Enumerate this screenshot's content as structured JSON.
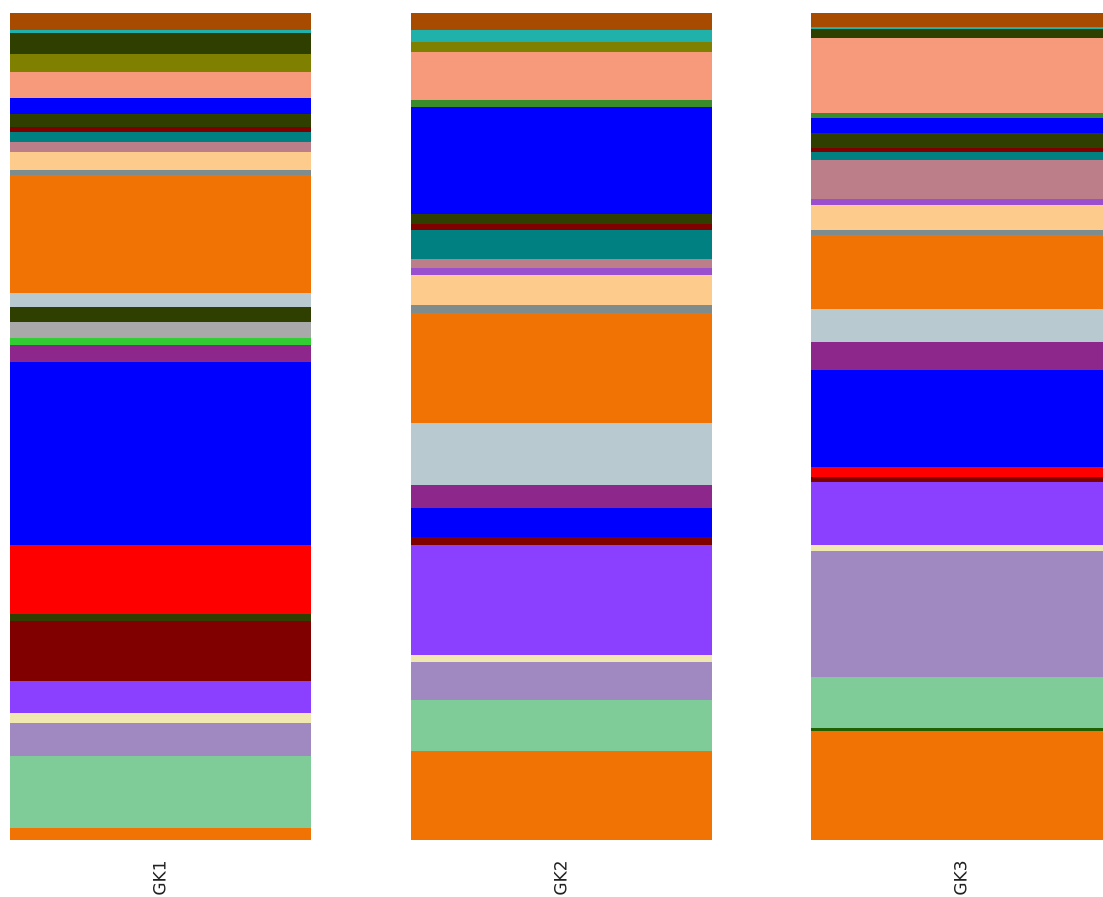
{
  "chart_data": {
    "type": "stacked_bar",
    "categories": [
      "GK1",
      "GK2",
      "GK3"
    ],
    "ylim": [
      0,
      827
    ],
    "series": [
      {
        "color": "#a64b00",
        "values": [
          17,
          17,
          14
        ]
      },
      {
        "color": "#20b2aa",
        "values": [
          3,
          12,
          2
        ]
      },
      {
        "color": "#2f3f00",
        "values": [
          21,
          0,
          9
        ]
      },
      {
        "color": "#808000",
        "values": [
          18,
          10,
          0
        ]
      },
      {
        "color": "#f79a7c",
        "values": [
          26,
          48,
          75
        ]
      },
      {
        "color": "#3a8c2b",
        "values": [
          0,
          7,
          5
        ]
      },
      {
        "color": "#0000ff",
        "values": [
          16,
          107,
          15
        ]
      },
      {
        "color": "#2f3f00",
        "values": [
          13,
          10,
          15
        ]
      },
      {
        "color": "#800000",
        "values": [
          5,
          6,
          4
        ]
      },
      {
        "color": "#008080",
        "values": [
          10,
          29,
          8
        ]
      },
      {
        "color": "#bc7f89",
        "values": [
          10,
          9,
          39
        ]
      },
      {
        "color": "#9a4fcf",
        "values": [
          0,
          7,
          6
        ]
      },
      {
        "color": "#fdcb8c",
        "values": [
          18,
          30,
          25
        ]
      },
      {
        "color": "#7f8c8d",
        "values": [
          5,
          8,
          5
        ]
      },
      {
        "color": "#f07304",
        "values": [
          118,
          110,
          74
        ]
      },
      {
        "color": "#b8c9d0",
        "values": [
          14,
          62,
          33
        ]
      },
      {
        "color": "#2f3f00",
        "values": [
          15,
          0,
          0
        ]
      },
      {
        "color": "#a9a9a9",
        "values": [
          16,
          0,
          0
        ]
      },
      {
        "color": "#32cd32",
        "values": [
          7,
          0,
          0
        ]
      },
      {
        "color": "#8e278c",
        "values": [
          17,
          23,
          28
        ]
      },
      {
        "color": "#0000ff",
        "values": [
          183,
          29,
          97
        ]
      },
      {
        "color": "#ff0000",
        "values": [
          69,
          0,
          10
        ]
      },
      {
        "color": "#2f3f00",
        "values": [
          7,
          0,
          0
        ]
      },
      {
        "color": "#800000",
        "values": [
          60,
          8,
          5
        ]
      },
      {
        "color": "#8c40ff",
        "values": [
          32,
          110,
          63
        ]
      },
      {
        "color": "#f0e8b0",
        "values": [
          10,
          7,
          6
        ]
      },
      {
        "color": "#a088c0",
        "values": [
          33,
          38,
          126
        ]
      },
      {
        "color": "#80cc99",
        "values": [
          72,
          51,
          51
        ]
      },
      {
        "color": "#206000",
        "values": [
          0,
          0,
          3
        ]
      },
      {
        "color": "#f07304",
        "values": [
          12,
          89,
          109
        ]
      }
    ]
  }
}
